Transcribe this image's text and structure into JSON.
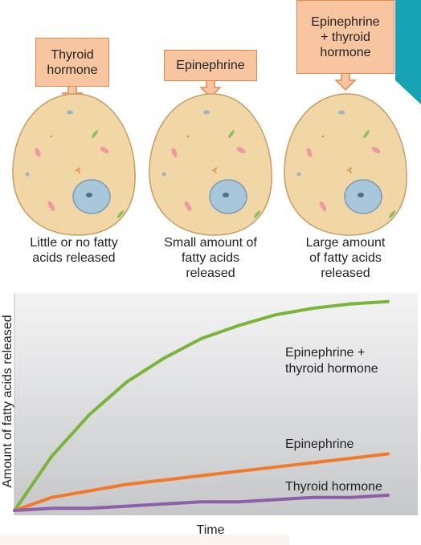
{
  "cells": [
    {
      "stimulus": "Thyroid hormone",
      "result": "Little or no fatty acids released"
    },
    {
      "stimulus": "Epinephrine",
      "result": "Small amount of fatty acids released"
    },
    {
      "stimulus": "Epinephrine + thyroid hormone",
      "result": "Large amount of fatty acids released"
    }
  ],
  "chart_data": {
    "type": "line",
    "x_label": "Time",
    "y_label": "Amount of fatty acids released",
    "x": [
      0,
      1,
      2,
      3,
      4,
      5,
      6,
      7,
      8,
      9,
      10
    ],
    "xlim": [
      0,
      10
    ],
    "ylim": [
      0,
      100
    ],
    "series": [
      {
        "name": "Epinephrine + thyroid hormone",
        "color": "#7ab43a",
        "values": [
          0,
          25,
          44,
          59,
          70,
          79,
          85,
          90,
          93,
          95,
          96
        ]
      },
      {
        "name": "Epinephrine",
        "color": "#f07a2a",
        "values": [
          0,
          6,
          9,
          12,
          14,
          16,
          18,
          20,
          22,
          24,
          26
        ]
      },
      {
        "name": "Thyroid hormone",
        "color": "#8d5fa8",
        "values": [
          0,
          1,
          1,
          2,
          3,
          4,
          4,
          5,
          6,
          6,
          7
        ]
      }
    ]
  }
}
